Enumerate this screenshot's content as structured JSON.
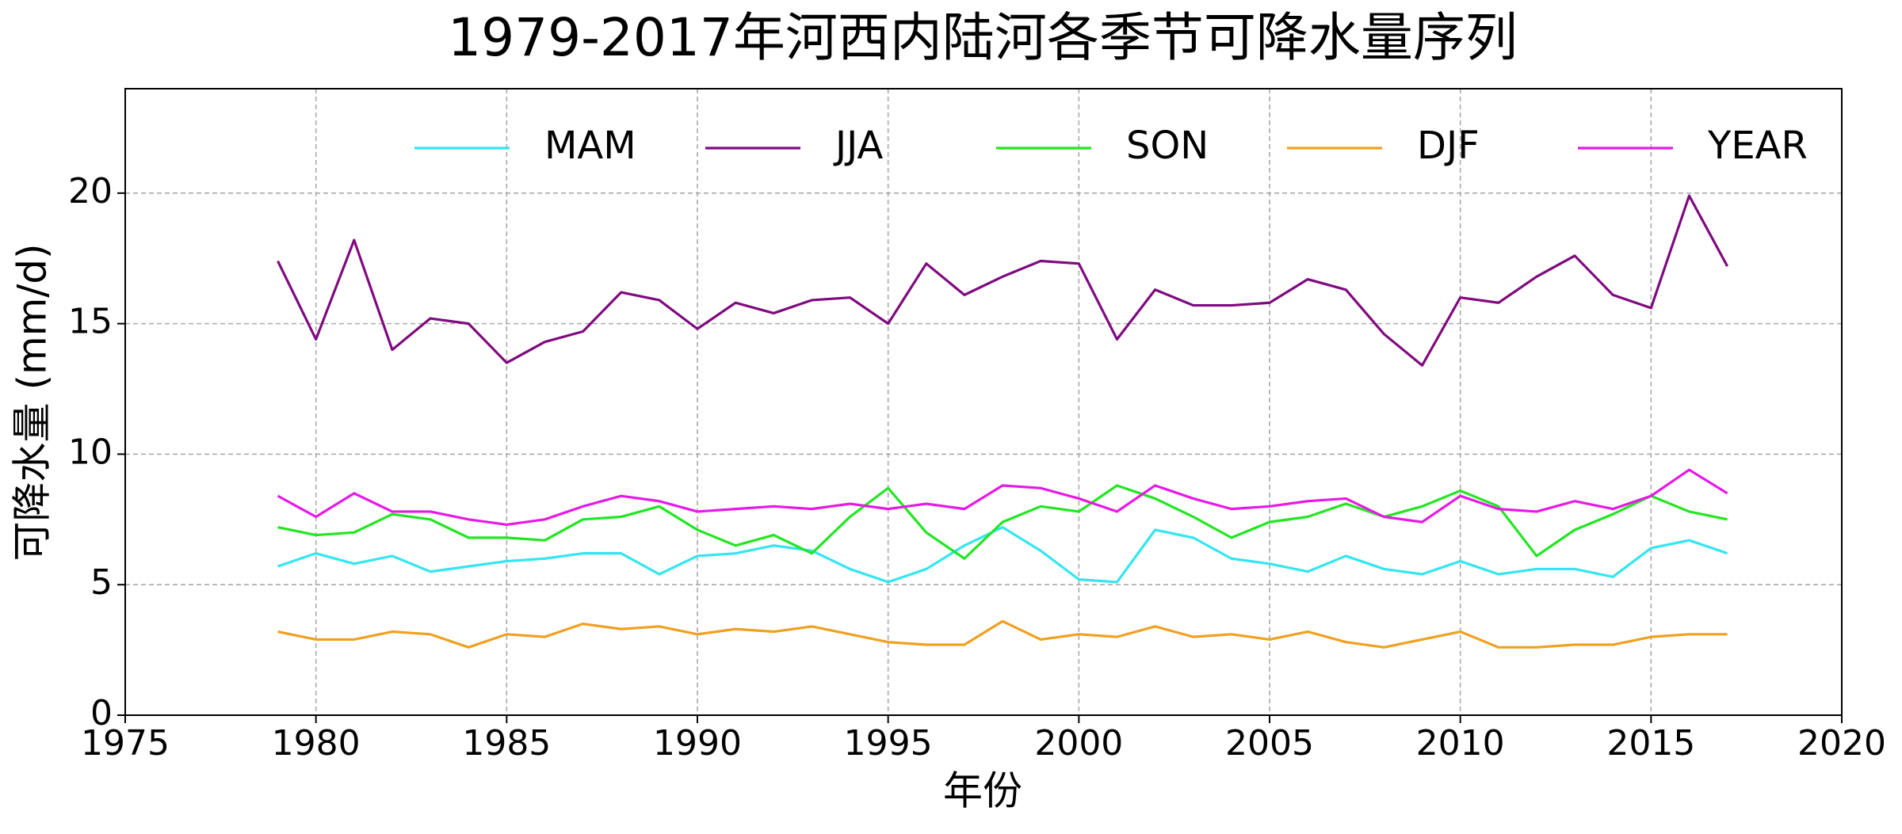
{
  "chart_data": {
    "type": "line",
    "title": "1979-2017年河西内陆河各季节可降水量序列",
    "x_label": "年份",
    "y_label": "可降水量 (mm/d)",
    "x": [
      1979,
      1980,
      1981,
      1982,
      1983,
      1984,
      1985,
      1986,
      1987,
      1988,
      1989,
      1990,
      1991,
      1992,
      1993,
      1994,
      1995,
      1996,
      1997,
      1998,
      1999,
      2000,
      2001,
      2002,
      2003,
      2004,
      2005,
      2006,
      2007,
      2008,
      2009,
      2010,
      2011,
      2012,
      2013,
      2014,
      2015,
      2016,
      2017
    ],
    "series": [
      {
        "name": "MAM",
        "color": "#33e6f0",
        "values": [
          5.7,
          6.2,
          5.8,
          6.1,
          5.5,
          5.7,
          5.9,
          6.0,
          6.2,
          6.2,
          5.4,
          6.1,
          6.2,
          6.5,
          6.3,
          5.6,
          5.1,
          5.6,
          6.5,
          7.2,
          6.3,
          5.2,
          5.1,
          7.1,
          6.8,
          6.0,
          5.8,
          5.5,
          6.1,
          5.6,
          5.4,
          5.9,
          5.4,
          5.6,
          5.6,
          5.3,
          6.4,
          6.7,
          6.2
        ]
      },
      {
        "name": "JJA",
        "color": "#7f0a7f",
        "values": [
          17.4,
          14.4,
          18.2,
          14.0,
          15.2,
          15.0,
          13.5,
          14.3,
          14.7,
          16.2,
          15.9,
          14.8,
          15.8,
          15.4,
          15.9,
          16.0,
          15.0,
          17.3,
          16.1,
          16.8,
          17.4,
          17.3,
          14.4,
          16.3,
          15.7,
          15.7,
          15.8,
          16.7,
          16.3,
          14.6,
          13.4,
          16.0,
          15.8,
          16.8,
          17.6,
          16.1,
          15.6,
          19.9,
          17.2
        ]
      },
      {
        "name": "SON",
        "color": "#22e622",
        "values": [
          7.2,
          6.9,
          7.0,
          7.7,
          7.5,
          6.8,
          6.8,
          6.7,
          7.5,
          7.6,
          8.0,
          7.1,
          6.5,
          6.9,
          6.2,
          7.6,
          8.7,
          7.0,
          6.0,
          7.4,
          8.0,
          7.8,
          8.8,
          8.3,
          7.6,
          6.8,
          7.4,
          7.6,
          8.1,
          7.6,
          8.0,
          8.6,
          8.0,
          6.1,
          7.1,
          7.7,
          8.4,
          7.8,
          7.5
        ]
      },
      {
        "name": "DJF",
        "color": "#f0a020",
        "values": [
          3.2,
          2.9,
          2.9,
          3.2,
          3.1,
          2.6,
          3.1,
          3.0,
          3.5,
          3.3,
          3.4,
          3.1,
          3.3,
          3.2,
          3.4,
          3.1,
          2.8,
          2.7,
          2.7,
          3.6,
          2.9,
          3.1,
          3.0,
          3.4,
          3.0,
          3.1,
          2.9,
          3.2,
          2.8,
          2.6,
          2.9,
          3.2,
          2.6,
          2.6,
          2.7,
          2.7,
          3.0,
          3.1,
          3.1
        ]
      },
      {
        "name": "YEAR",
        "color": "#e619e6",
        "values": [
          8.4,
          7.6,
          8.5,
          7.8,
          7.8,
          7.5,
          7.3,
          7.5,
          8.0,
          8.4,
          8.2,
          7.8,
          7.9,
          8.0,
          7.9,
          8.1,
          7.9,
          8.1,
          7.9,
          8.8,
          8.7,
          8.3,
          7.8,
          8.8,
          8.3,
          7.9,
          8.0,
          8.2,
          8.3,
          7.6,
          7.4,
          8.4,
          7.9,
          7.8,
          8.2,
          7.9,
          8.4,
          9.4,
          8.5
        ]
      }
    ],
    "xlim": [
      1975,
      2020
    ],
    "xticks": [
      1975,
      1980,
      1985,
      1990,
      1995,
      2000,
      2005,
      2010,
      2015,
      2020
    ],
    "ylim": [
      0,
      24
    ],
    "yticks": [
      0,
      5,
      10,
      15,
      20
    ],
    "grid": true,
    "legend": "upper center"
  }
}
